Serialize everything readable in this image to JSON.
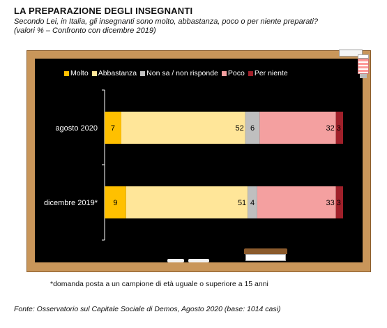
{
  "title": "LA PREPARAZIONE  DEGLI INSEGNANTI",
  "subtitle_line1": "Secondo Lei,  in Italia, gli insegnanti sono molto, abbastanza,  poco o per niente preparati?",
  "subtitle_line2": "(valori % – Confronto  con dicembre 2019)",
  "footnote": "*domanda posta a un campione di età uguale o superiore a 15 anni",
  "source": "Fonte: Osservatorio sul Capitale Sociale di Demos, Agosto 2020 (base: 1014 casi)",
  "chart_data": {
    "type": "bar",
    "orientation": "horizontal",
    "stacked": true,
    "categories": [
      "agosto 2020",
      "dicembre 2019*"
    ],
    "series": [
      {
        "name": "Molto",
        "color": "#ffc000",
        "values": [
          7,
          9
        ]
      },
      {
        "name": "Abbastanza",
        "color": "#ffe699",
        "values": [
          52,
          51
        ]
      },
      {
        "name": "Non sa / non risponde",
        "color": "#bfbfbf",
        "values": [
          6,
          4
        ]
      },
      {
        "name": "Poco",
        "color": "#f4a0a0",
        "values": [
          32,
          33
        ]
      },
      {
        "name": "Per niente",
        "color": "#a0202a",
        "values": [
          3,
          3
        ]
      }
    ],
    "xlim": [
      0,
      100
    ],
    "legend": "top",
    "grid": false
  }
}
